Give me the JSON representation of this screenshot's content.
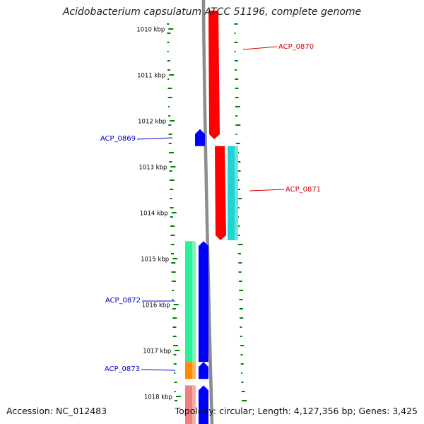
{
  "title": "Acidobacterium capsulatum ATCC 51196, complete genome",
  "footer": {
    "accession": "Accession: NC_012483",
    "summary": "Topology: circular; Length: 4,127,356 bp; Genes: 3,425"
  },
  "ruler": {
    "unit": "kbp",
    "ticks": [
      {
        "label": "1010 kbp",
        "kbp": 1010
      },
      {
        "label": "1011 kbp",
        "kbp": 1011
      },
      {
        "label": "1012 kbp",
        "kbp": 1012
      },
      {
        "label": "1013 kbp",
        "kbp": 1013
      },
      {
        "label": "1014 kbp",
        "kbp": 1014
      },
      {
        "label": "1015 kbp",
        "kbp": 1015
      },
      {
        "label": "1016 kbp",
        "kbp": 1016
      },
      {
        "label": "1017 kbp",
        "kbp": 1017
      },
      {
        "label": "1018 kbp",
        "kbp": 1018
      }
    ]
  },
  "genes": [
    {
      "name": "ACP_0870",
      "strand": "+",
      "start_kbp": 1009.6,
      "end_kbp": 1012.4,
      "color": "#ff0000",
      "label_color": "#d40000"
    },
    {
      "name": "ACP_0869",
      "strand": "-",
      "start_kbp": 1012.18,
      "end_kbp": 1012.55,
      "color": "#0000ff",
      "label_color": "#0000cc"
    },
    {
      "name": "ACP_0871",
      "strand": "+",
      "start_kbp": 1012.55,
      "end_kbp": 1014.6,
      "color": "#ff0000",
      "label_color": "#d40000"
    },
    {
      "name": "ACP_0872",
      "strand": "-",
      "start_kbp": 1014.62,
      "end_kbp": 1017.25,
      "color": "#0000ff",
      "label_color": "#0000cc"
    },
    {
      "name": "ACP_0873",
      "strand": "-",
      "start_kbp": 1017.25,
      "end_kbp": 1017.62,
      "color": "#0000ff",
      "label_color": "#0000cc"
    },
    {
      "name": "",
      "strand": "-",
      "start_kbp": 1017.76,
      "end_kbp": 1018.6,
      "color": "#0000ff",
      "label_color": "#0000cc"
    }
  ],
  "feature_blocks": [
    {
      "kind": "cyan",
      "start_kbp": 1012.55,
      "end_kbp": 1014.6,
      "color": "#22d3d3"
    },
    {
      "kind": "green",
      "start_kbp": 1014.62,
      "end_kbp": 1017.25,
      "color": "#2bf29a"
    },
    {
      "kind": "orange",
      "start_kbp": 1017.25,
      "end_kbp": 1017.62,
      "color": "#ff8c00"
    },
    {
      "kind": "pink",
      "start_kbp": 1017.76,
      "end_kbp": 1018.6,
      "color": "#f08080"
    }
  ],
  "colors": {
    "backbone": "#8c8c8c",
    "dots": "#008000",
    "forward_label": "#d40000",
    "reverse_label": "#0000cc"
  }
}
